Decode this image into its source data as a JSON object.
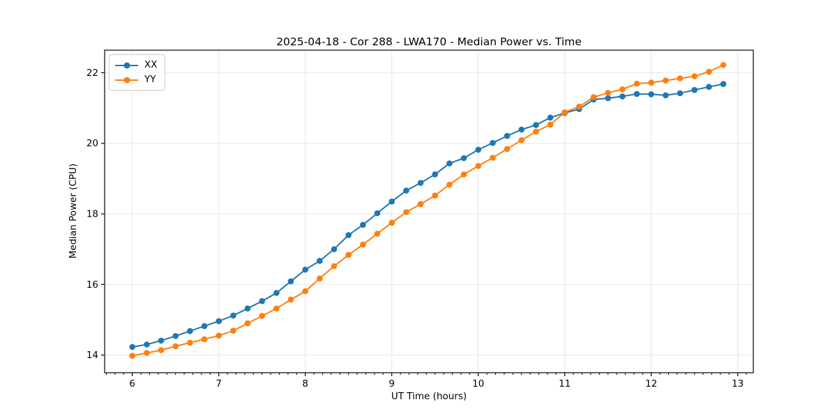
{
  "colors": {
    "grid": "#e6e6e6",
    "frame": "#000000",
    "text": "#000000",
    "legend_border": "#cccccc",
    "background": "#ffffff"
  },
  "chart_data": {
    "type": "line",
    "title": "2025-04-18 - Cor 288 - LWA170 - Median Power vs. Time",
    "xlabel": "UT Time (hours)",
    "ylabel": "Median Power (CPU)",
    "xlim": [
      5.68,
      13.18
    ],
    "ylim": [
      13.5,
      22.64
    ],
    "xticks": [
      6,
      7,
      8,
      9,
      10,
      11,
      12,
      13
    ],
    "yticks": [
      14,
      16,
      18,
      20,
      22
    ],
    "x_minor_tick_step": 0.1,
    "grid": true,
    "legend_position": "upper left",
    "marker": "circle",
    "x": [
      6,
      6.167,
      6.333,
      6.5,
      6.667,
      6.833,
      7,
      7.167,
      7.333,
      7.5,
      7.667,
      7.833,
      8,
      8.167,
      8.333,
      8.5,
      8.667,
      8.833,
      9,
      9.167,
      9.333,
      9.5,
      9.667,
      9.833,
      10,
      10.167,
      10.333,
      10.5,
      10.667,
      10.833,
      11,
      11.167,
      11.333,
      11.5,
      11.667,
      11.833,
      12,
      12.167,
      12.333,
      12.5,
      12.667,
      12.833
    ],
    "series": [
      {
        "name": "XX",
        "color": "#1f77b4",
        "values": [
          14.23,
          14.3,
          14.41,
          14.54,
          14.68,
          14.82,
          14.96,
          15.12,
          15.32,
          15.53,
          15.76,
          16.09,
          16.42,
          16.67,
          17.0,
          17.4,
          17.69,
          18.02,
          18.35,
          18.66,
          18.88,
          19.12,
          19.43,
          19.58,
          19.82,
          20.01,
          20.21,
          20.39,
          20.52,
          20.73,
          20.86,
          20.97,
          21.24,
          21.28,
          21.33,
          21.4,
          21.39,
          21.36,
          21.42,
          21.51,
          21.6,
          21.68
        ]
      },
      {
        "name": "YY",
        "color": "#ff7f0e",
        "values": [
          13.98,
          14.06,
          14.14,
          14.25,
          14.35,
          14.45,
          14.55,
          14.69,
          14.9,
          15.11,
          15.32,
          15.57,
          15.81,
          16.17,
          16.52,
          16.84,
          17.13,
          17.44,
          17.75,
          18.05,
          18.28,
          18.52,
          18.83,
          19.12,
          19.36,
          19.59,
          19.84,
          20.09,
          20.33,
          20.53,
          20.88,
          21.04,
          21.31,
          21.43,
          21.53,
          21.69,
          21.72,
          21.78,
          21.84,
          21.9,
          22.03,
          22.22
        ]
      }
    ]
  }
}
